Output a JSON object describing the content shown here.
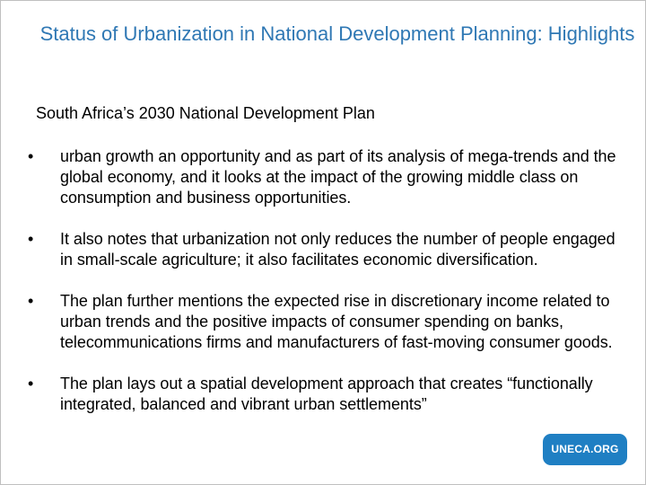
{
  "slide": {
    "title": "Status of Urbanization in National Development Planning: Highlights",
    "subheading": "South Africa’s 2030 National Development Plan",
    "bullet_symbol": "•",
    "bullets": [
      "urban growth an opportunity and as part of its analysis of mega-trends and the global economy, and it looks at the impact of the growing middle class on consumption and business opportunities.",
      "It also notes that urbanization not only reduces the number of people engaged in small-scale agriculture; it also facilitates economic diversification.",
      "The plan further mentions the expected rise in discretionary income related to urban trends and the positive impacts of consumer spending on banks, telecommunications firms and manufacturers of fast-moving consumer goods.",
      "The plan lays out a spatial development approach that creates “functionally integrated, balanced and vibrant urban settlements”"
    ],
    "badge_label": "UNECA.ORG"
  },
  "colors": {
    "title": "#2f78b4",
    "badge_background": "#1f7fc3",
    "badge_text": "#ffffff",
    "body_text": "#000000"
  }
}
